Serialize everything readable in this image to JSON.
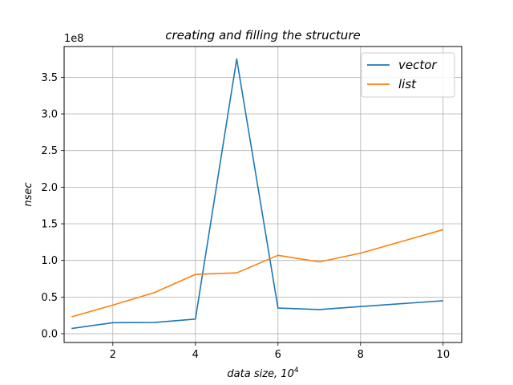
{
  "chart_data": {
    "type": "line",
    "title": "creating and filling the structure",
    "xlabel": "data size, 10",
    "xlabel_sup": "4",
    "ylabel": "nsec",
    "y_multiplier": "1e8",
    "x": [
      1,
      2,
      3,
      4,
      5,
      6,
      7,
      8,
      9,
      10
    ],
    "xlim": [
      0.82,
      10.45
    ],
    "ylim": [
      -0.12,
      3.92
    ],
    "xticks": [
      2,
      4,
      6,
      8,
      10
    ],
    "xtick_labels": [
      "2",
      "4",
      "6",
      "8",
      "10"
    ],
    "yticks": [
      0.0,
      0.5,
      1.0,
      1.5,
      2.0,
      2.5,
      3.0,
      3.5
    ],
    "ytick_labels": [
      "0.0",
      "0.5",
      "1.0",
      "1.5",
      "2.0",
      "2.5",
      "3.0",
      "3.5"
    ],
    "grid": true,
    "legend_position": "top-right",
    "series": [
      {
        "name": "vector",
        "color": "#1f77b4",
        "values": [
          0.07,
          0.15,
          0.153,
          0.2,
          3.75,
          0.35,
          0.33,
          0.37,
          0.41,
          0.45
        ]
      },
      {
        "name": "list",
        "color": "#ff7f0e",
        "values": [
          0.23,
          0.39,
          0.56,
          0.81,
          0.83,
          1.07,
          0.98,
          1.1,
          1.26,
          1.42
        ]
      }
    ]
  }
}
